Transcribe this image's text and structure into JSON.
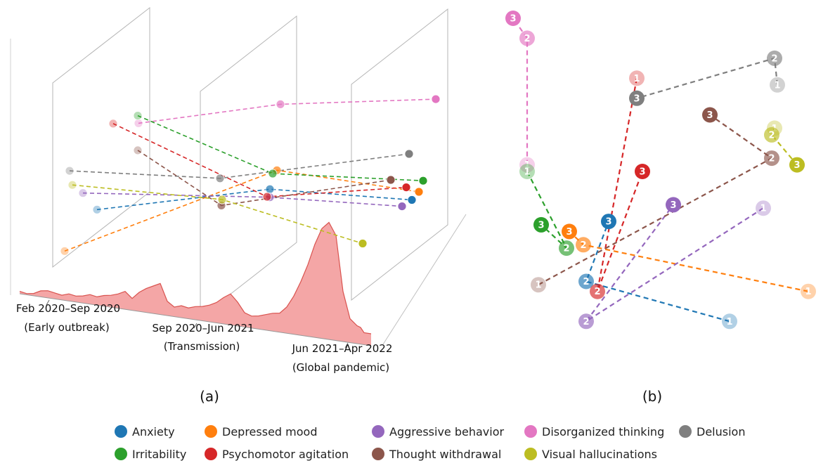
{
  "colors": {
    "Anxiety": "#1f77b4",
    "Depressed mood": "#ff7f0e",
    "Aggressive behavior": "#9467bd",
    "Disorganized thinking": "#e377c2",
    "Delusion": "#7f7f7f",
    "Irritability": "#2ca02c",
    "Psychomotor agitation": "#d62728",
    "Thought withdrawal": "#8c564b",
    "Visual hallucinations": "#bcbd22",
    "area_fill": "#f4a6a6",
    "area_line": "#d9534f"
  },
  "panels": {
    "a_label": "(a)",
    "b_label": "(b)"
  },
  "timeline": {
    "periods": [
      {
        "range": "Feb 2020–Sep 2020",
        "phase": "(Early outbreak)"
      },
      {
        "range": "Sep 2020–Jun 2021",
        "phase": "(Transmission)"
      },
      {
        "range": "Jun 2021–Apr 2022",
        "phase": "(Global pandemic)"
      }
    ]
  },
  "legend": {
    "items": [
      "Anxiety",
      "Depressed mood",
      "Aggressive behavior",
      "Disorganized thinking",
      "Delusion",
      "Irritability",
      "Psychomotor agitation",
      "Thought withdrawal",
      "Visual hallucinations"
    ]
  },
  "chart_data": [
    {
      "type": "line",
      "panel": "(a)",
      "xlabel": "",
      "ylabel": "",
      "categories": [
        "Feb 2020–Sep 2020",
        "Sep 2020–Jun 2021",
        "Jun 2021–Apr 2022"
      ],
      "series": [
        {
          "name": "Anxiety",
          "values": [
            0.28,
            0.4,
            0.25
          ]
        },
        {
          "name": "Depressed mood",
          "values": [
            0.12,
            0.5,
            0.27
          ]
        },
        {
          "name": "Aggressive behavior",
          "values": [
            0.55,
            0.34,
            0.26
          ]
        },
        {
          "name": "Disorganized thinking",
          "values": [
            0.81,
            0.97,
            0.88
          ]
        },
        {
          "name": "Delusion",
          "values": [
            0.87,
            0.77,
            0.62
          ]
        },
        {
          "name": "Irritability",
          "values": [
            0.89,
            0.5,
            0.33
          ]
        },
        {
          "name": "Psychomotor agitation",
          "values": [
            1.0,
            0.36,
            0.38
          ]
        },
        {
          "name": "Thought withdrawal",
          "values": [
            0.55,
            0.56,
            0.53
          ]
        },
        {
          "name": "Visual hallucinations",
          "values": [
            0.71,
            0.6,
            0.21
          ]
        }
      ],
      "area": {
        "x": [
          0.0,
          0.02,
          0.04,
          0.06,
          0.08,
          0.1,
          0.12,
          0.14,
          0.16,
          0.18,
          0.2,
          0.22,
          0.24,
          0.26,
          0.28,
          0.3,
          0.32,
          0.34,
          0.36,
          0.38,
          0.4,
          0.42,
          0.44,
          0.46,
          0.48,
          0.5,
          0.52,
          0.54,
          0.56,
          0.58,
          0.6,
          0.62,
          0.64,
          0.66,
          0.68,
          0.7,
          0.72,
          0.74,
          0.76,
          0.78,
          0.8,
          0.82,
          0.84,
          0.86,
          0.88,
          0.9,
          0.92,
          0.94,
          0.96,
          0.97,
          0.98,
          1.0
        ],
        "y": [
          0.02,
          0.01,
          0.02,
          0.05,
          0.06,
          0.05,
          0.04,
          0.06,
          0.05,
          0.06,
          0.08,
          0.07,
          0.09,
          0.1,
          0.12,
          0.15,
          0.1,
          0.16,
          0.2,
          0.23,
          0.26,
          0.12,
          0.08,
          0.1,
          0.09,
          0.11,
          0.12,
          0.14,
          0.17,
          0.22,
          0.26,
          0.2,
          0.12,
          0.1,
          0.11,
          0.13,
          0.15,
          0.16,
          0.22,
          0.32,
          0.45,
          0.6,
          0.78,
          0.92,
          0.98,
          0.88,
          0.42,
          0.2,
          0.15,
          0.14,
          0.1,
          0.1
        ]
      }
    },
    {
      "type": "scatter",
      "panel": "(b)",
      "xlabel": "",
      "ylabel": "",
      "series": [
        {
          "name": "Anxiety",
          "labels": [
            "1",
            "2",
            "3"
          ],
          "x": [
            0.72,
            0.21,
            0.29
          ],
          "y": [
            0.09,
            0.21,
            0.39
          ]
        },
        {
          "name": "Depressed mood",
          "labels": [
            "1",
            "2",
            "3"
          ],
          "x": [
            1.0,
            0.2,
            0.15
          ],
          "y": [
            0.18,
            0.32,
            0.36
          ]
        },
        {
          "name": "Aggressive behavior",
          "labels": [
            "1",
            "2",
            "3"
          ],
          "x": [
            0.84,
            0.21,
            0.52
          ],
          "y": [
            0.43,
            0.09,
            0.44
          ]
        },
        {
          "name": "Disorganized thinking",
          "labels": [
            "1",
            "2",
            "3"
          ],
          "x": [
            0.0,
            0.0,
            -0.05
          ],
          "y": [
            0.56,
            0.94,
            1.0
          ]
        },
        {
          "name": "Delusion",
          "labels": [
            "1",
            "2",
            "3"
          ],
          "x": [
            0.89,
            0.88,
            0.39
          ],
          "y": [
            0.8,
            0.88,
            0.76
          ]
        },
        {
          "name": "Irritability",
          "labels": [
            "1",
            "2",
            "3"
          ],
          "x": [
            0.0,
            0.14,
            0.05
          ],
          "y": [
            0.54,
            0.31,
            0.38
          ]
        },
        {
          "name": "Psychomotor agitation",
          "labels": [
            "1",
            "2",
            "3"
          ],
          "x": [
            0.39,
            0.25,
            0.41
          ],
          "y": [
            0.82,
            0.18,
            0.54
          ]
        },
        {
          "name": "Thought withdrawal",
          "labels": [
            "1",
            "2",
            "3"
          ],
          "x": [
            0.04,
            0.87,
            0.65
          ],
          "y": [
            0.2,
            0.58,
            0.71
          ]
        },
        {
          "name": "Visual hallucinations",
          "labels": [
            "1",
            "2",
            "3"
          ],
          "x": [
            0.88,
            0.87,
            0.96
          ],
          "y": [
            0.67,
            0.65,
            0.56
          ]
        }
      ]
    }
  ]
}
